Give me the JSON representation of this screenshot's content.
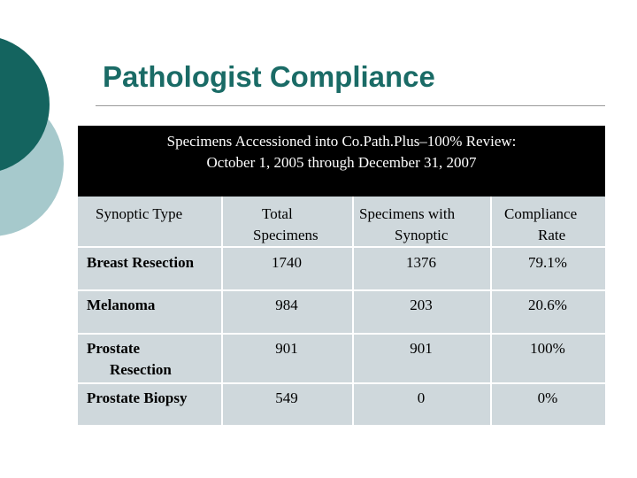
{
  "slide": {
    "title": "Pathologist Compliance"
  },
  "table": {
    "header_line1": "Specimens Accessioned into Co.Path.Plus–100% Review:",
    "header_line2": "October 1, 2005 through December 31, 2007",
    "columns": [
      {
        "line1": "Synoptic Type",
        "line2": ""
      },
      {
        "line1": "Total",
        "line2": "Specimens"
      },
      {
        "line1": "Specimens with",
        "line2": "Synoptic"
      },
      {
        "line1": "Compliance",
        "line2": "Rate"
      }
    ],
    "rows": [
      {
        "label1": "Breast Resection",
        "label2": "",
        "total": "1740",
        "synoptic": "1376",
        "rate": "79.1%"
      },
      {
        "label1": "Melanoma",
        "label2": "",
        "total": "984",
        "synoptic": "203",
        "rate": "20.6%"
      },
      {
        "label1": "Prostate",
        "label2": "Resection",
        "total": "901",
        "synoptic": "901",
        "rate": "100%"
      },
      {
        "label1": "Prostate Biopsy",
        "label2": "",
        "total": "549",
        "synoptic": "0",
        "rate": "0%"
      }
    ]
  },
  "colors": {
    "title": "#1a6b66",
    "deco_dark": "#14645f",
    "deco_light": "#a6c9cc",
    "table_fill": "#cfd8dc"
  }
}
